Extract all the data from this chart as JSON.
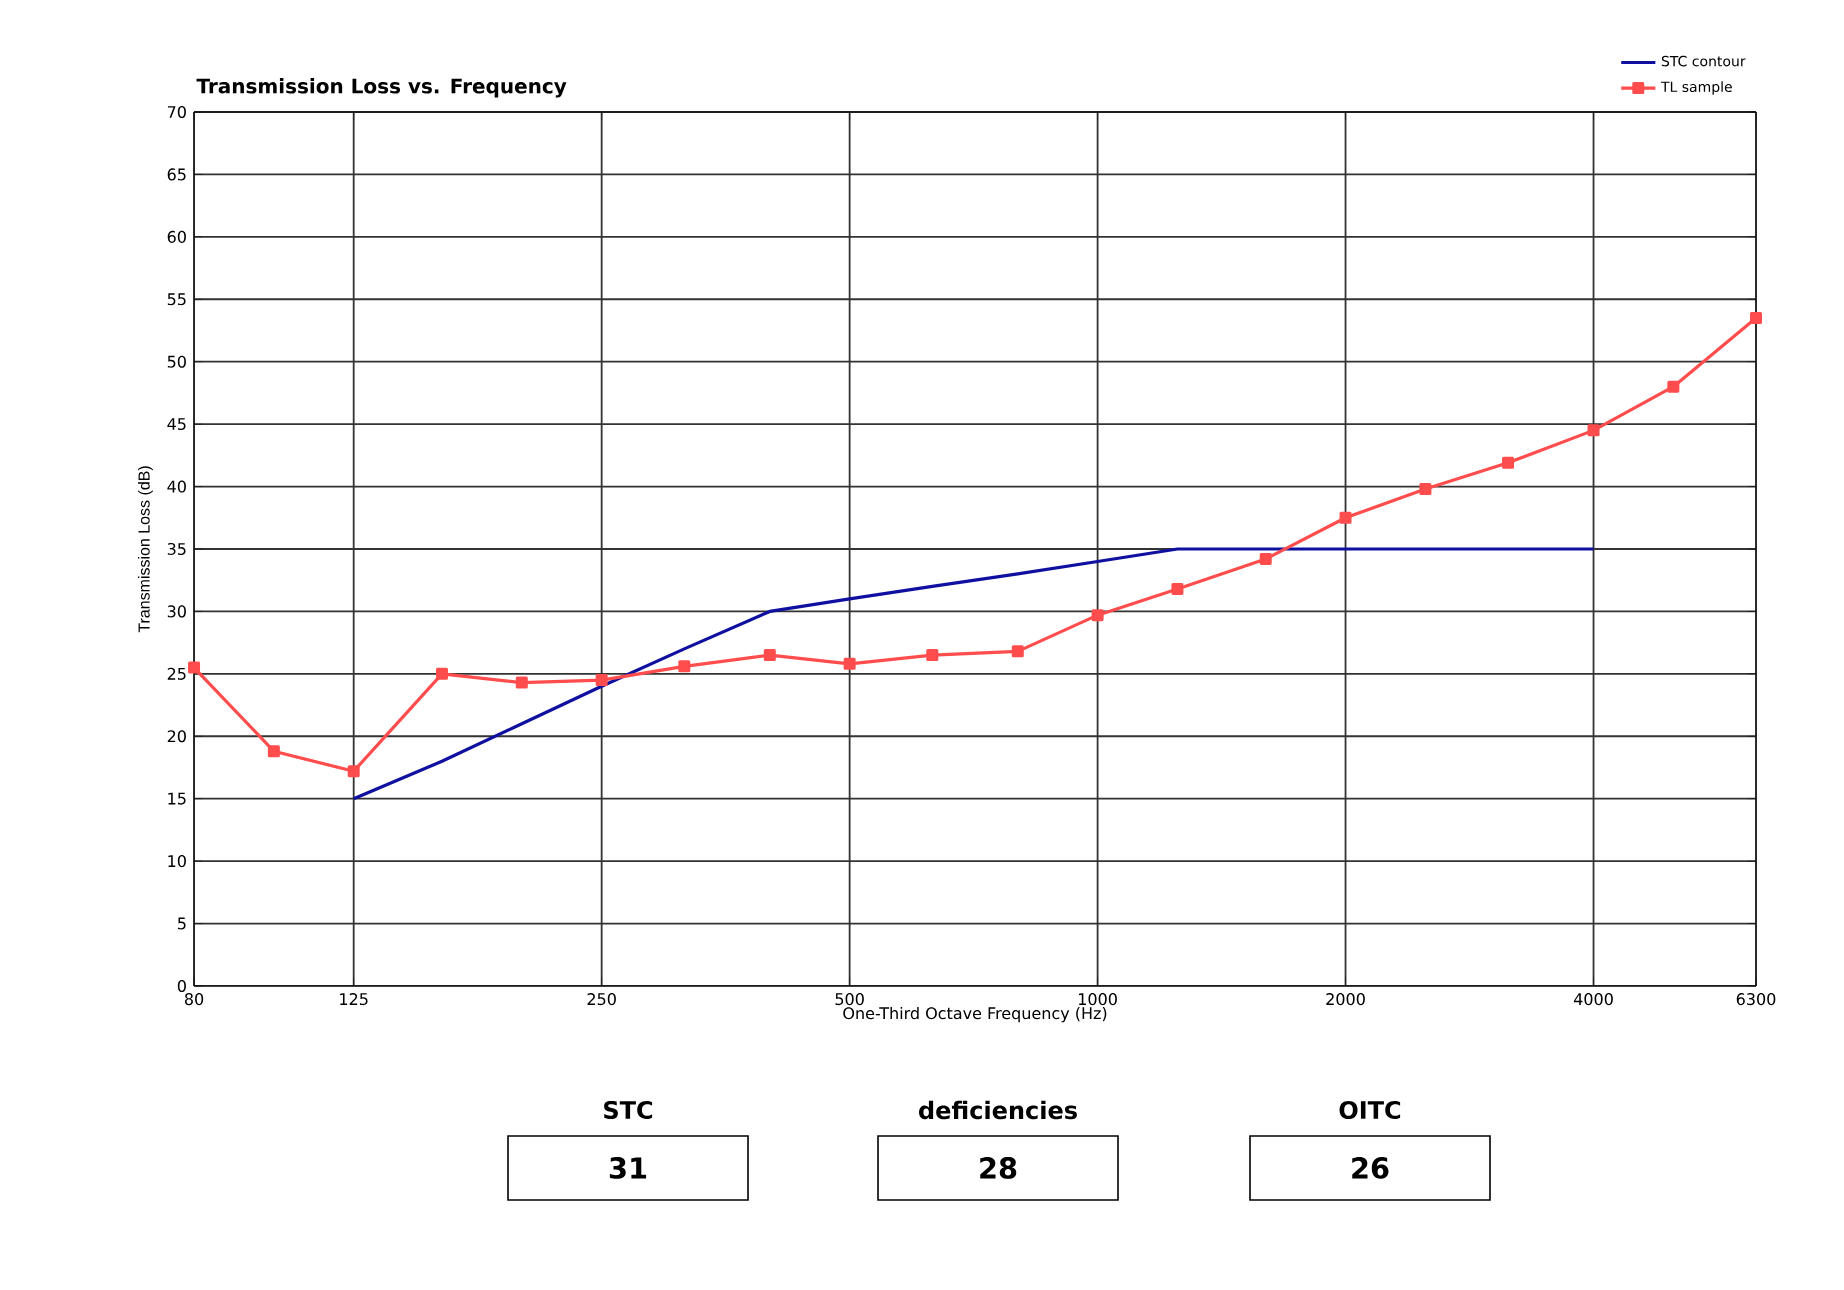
{
  "chart_data": {
    "type": "line",
    "title": "Transmission Loss vs. Frequency",
    "xlabel": "One-Third Octave Frequency (Hz)",
    "ylabel": "Transmission Loss (dB)",
    "log": "x",
    "x": [
      80,
      100,
      125,
      160,
      200,
      250,
      315,
      400,
      500,
      630,
      800,
      1000,
      1250,
      1600,
      2000,
      2500,
      3150,
      4000,
      5000,
      6300
    ],
    "series": [
      {
        "name": "STC contour",
        "color": "#1010a0",
        "marker": "none",
        "x": [
          125,
          160,
          200,
          250,
          315,
          400,
          500,
          630,
          800,
          1000,
          1250,
          1600,
          2000,
          2500,
          3150,
          4000
        ],
        "values": [
          15,
          18,
          21,
          24,
          27,
          30,
          31,
          32,
          33,
          34,
          35,
          35,
          35,
          35,
          35,
          35
        ]
      },
      {
        "name": "TL sample",
        "color": "#ff4c4c",
        "marker": "square",
        "values": [
          25.5,
          18.8,
          17.2,
          25,
          24.3,
          24.5,
          25.6,
          26.5,
          25.8,
          26.5,
          26.8,
          29.7,
          31.8,
          34.2,
          37.5,
          39.8,
          41.9,
          44.5,
          48,
          53.5
        ]
      }
    ],
    "xlim": [
      80,
      6300
    ],
    "ylim": [
      0,
      70
    ],
    "xticks": [
      80,
      125,
      250,
      500,
      1000,
      2000,
      4000,
      6300
    ],
    "yticks": [
      0,
      5,
      10,
      15,
      20,
      25,
      30,
      35,
      40,
      45,
      50,
      55,
      60,
      65,
      70
    ],
    "grid": true,
    "legend": "top right",
    "annotations": [
      "STC",
      "31",
      "deficiencies",
      "28",
      "OITC",
      "26"
    ]
  }
}
